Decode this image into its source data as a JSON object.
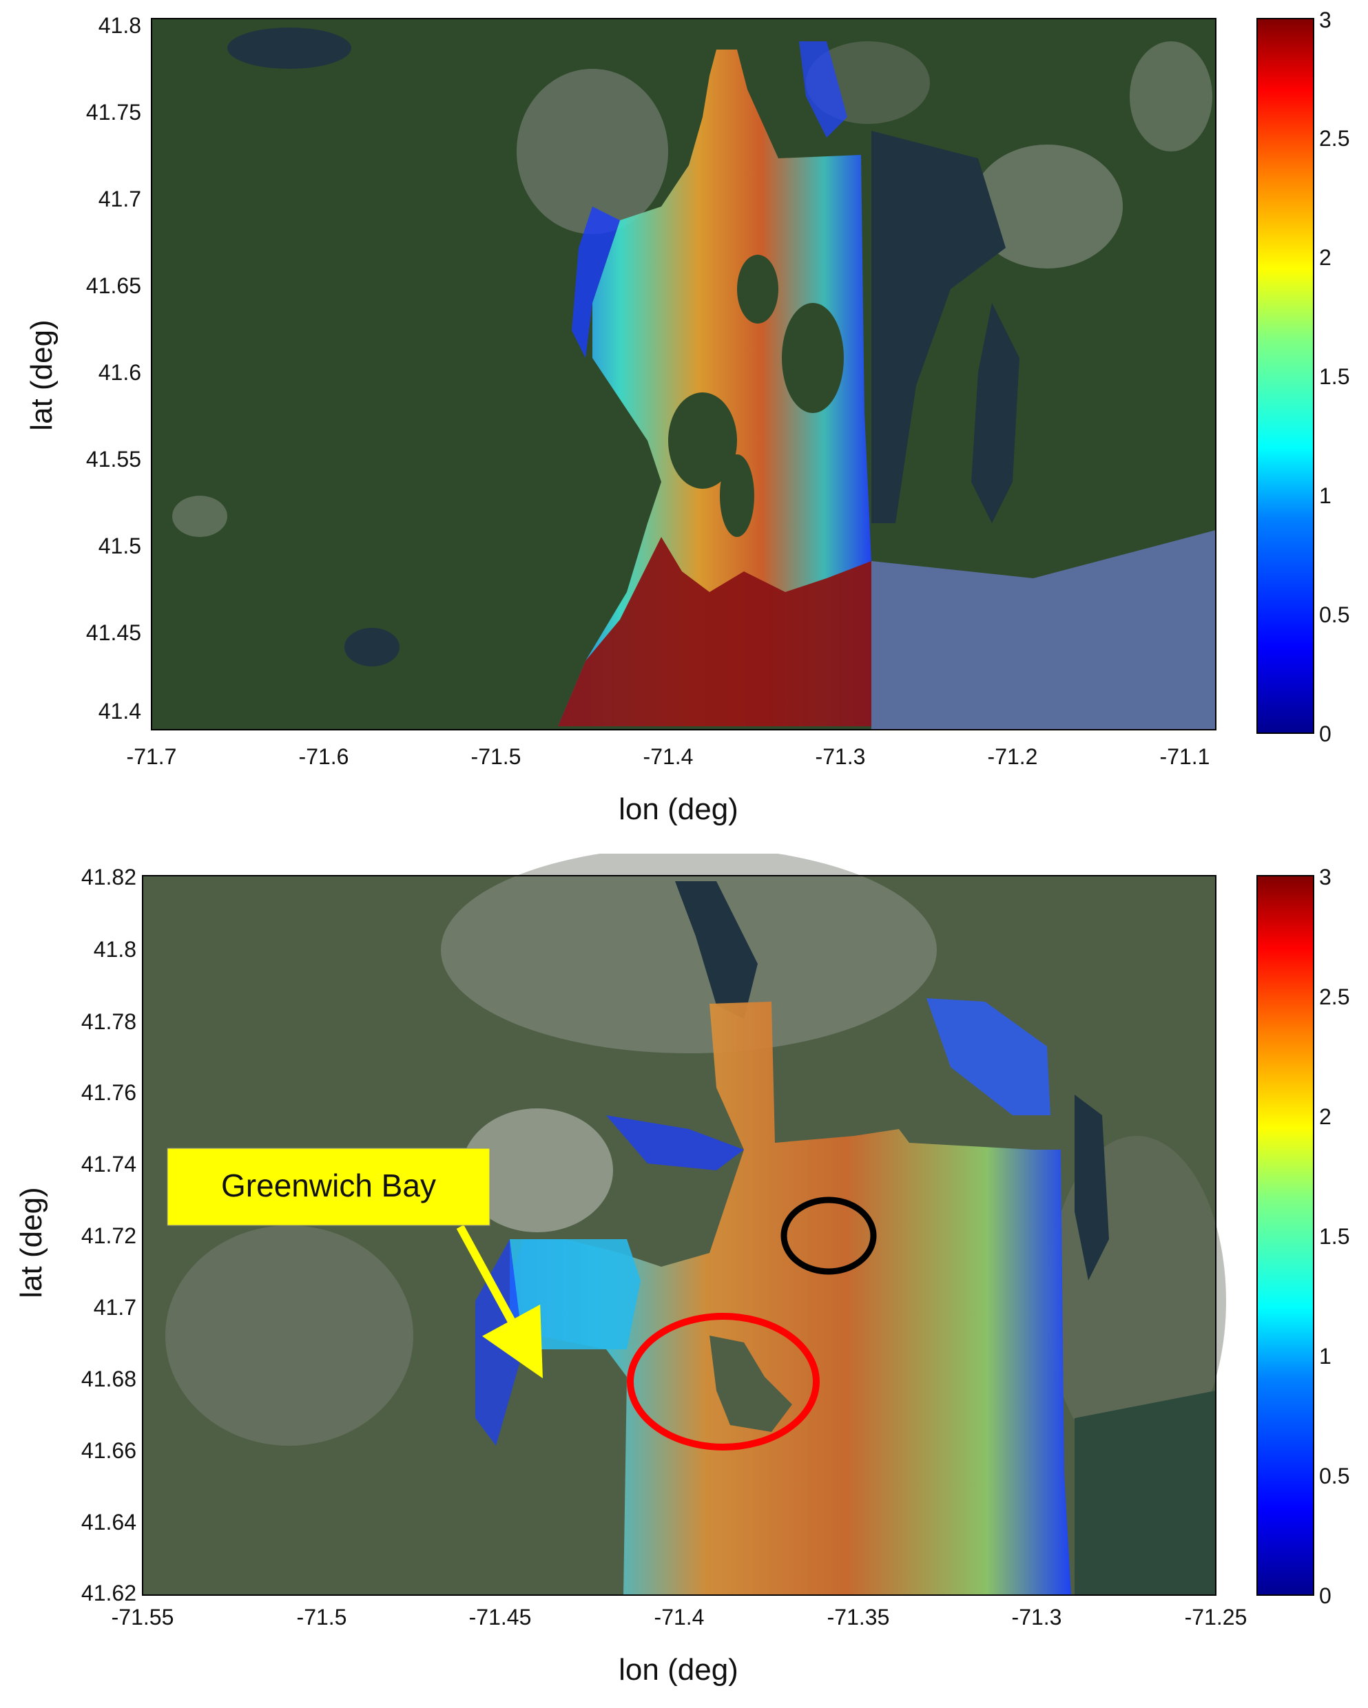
{
  "colors": {
    "land_dark": "#2e4a2a",
    "land_mid": "#3d5a34",
    "urban": "#8a8f86",
    "water_dark": "#1f3440",
    "ocean_blue": "#5a6e9e",
    "callout_fill": "#ffff00",
    "callout_arrow": "#ffff00",
    "red_circle": "#ff0000",
    "black_circle": "#000000"
  },
  "colorbar": {
    "stops": [
      "#00008f",
      "#0000ff",
      "#0080ff",
      "#00ffff",
      "#80ff80",
      "#ffff00",
      "#ff8000",
      "#ff0000",
      "#800000"
    ]
  },
  "maps": [
    {
      "id": "map-top",
      "xlabel": "lon (deg)",
      "ylabel": "lat (deg)",
      "xlim": [
        -71.7,
        -71.1
      ],
      "ylim": [
        41.39,
        41.8
      ],
      "x_ticks": [
        "-71.7",
        "-71.6",
        "-71.5",
        "-71.4",
        "-71.3",
        "-71.2",
        "-71.1"
      ],
      "y_ticks": [
        "41.8",
        "41.75",
        "41.7",
        "41.65",
        "41.6",
        "41.55",
        "41.5",
        "41.45",
        "41.4"
      ],
      "colorbar_ticks": [
        "3",
        "2.5",
        "2",
        "1.5",
        "1",
        "0.5",
        "0"
      ],
      "colorbar_range": [
        0,
        3
      ]
    },
    {
      "id": "map-bottom",
      "xlabel": "lon (deg)",
      "ylabel": "lat (deg)",
      "xlim": [
        -71.55,
        -71.25
      ],
      "ylim": [
        41.62,
        41.82
      ],
      "x_ticks": [
        "-71.55",
        "-71.5",
        "-71.45",
        "-71.4",
        "-71.35",
        "-71.3",
        "-71.25"
      ],
      "y_ticks": [
        "41.82",
        "41.8",
        "41.78",
        "41.76",
        "41.74",
        "41.72",
        "41.7",
        "41.68",
        "41.66",
        "41.64",
        "41.62"
      ],
      "colorbar_ticks": [
        "3",
        "2.5",
        "2",
        "1.5",
        "1",
        "0.5",
        "0"
      ],
      "colorbar_range": [
        0,
        3
      ],
      "callout": {
        "text": "Greenwich Bay"
      },
      "markers": [
        {
          "name": "red-circle-marker",
          "color": "#ff0000"
        },
        {
          "name": "black-circle-marker",
          "color": "#000000"
        }
      ]
    }
  ]
}
